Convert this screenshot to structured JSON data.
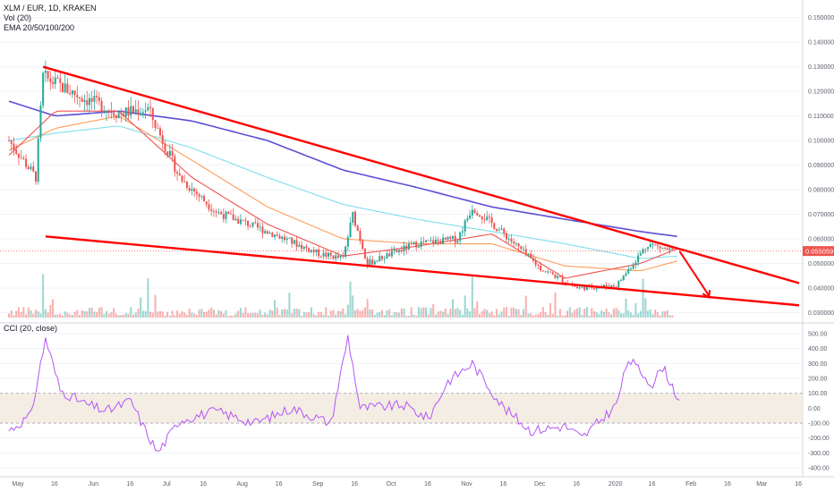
{
  "legend": {
    "symbol": "XLM / EUR, 1D, KRAKEN",
    "volume": "Vol (20)",
    "ema": "EMA 20/50/100/200",
    "cci": "CCI (20, close)"
  },
  "colors": {
    "up": "#26a69a",
    "down": "#ef5350",
    "trendline": "#ff0000",
    "ema20": "#ef5350",
    "ema50": "#ff9c5a",
    "ema100": "#80deea",
    "ema200": "#5c4fd6",
    "cci_line": "#b455f5",
    "cci_band": "#f4ede4"
  },
  "chart_data": [
    {
      "type": "candlestick",
      "title": "XLM / EUR, 1D, KRAKEN",
      "price_axis_ticks": [
        "0.150000",
        "0.140000",
        "0.130000",
        "0.120000",
        "0.110000",
        "0.100000",
        "0.090000",
        "0.080000",
        "0.070000",
        "0.060000",
        "0.050000",
        "0.040000",
        "0.030000"
      ],
      "last_price_label": "0.055059",
      "last_price": 0.055059,
      "ylim": [
        0.028,
        0.155
      ],
      "time_axis_labels": [
        "May",
        "16",
        "Jun",
        "16",
        "Jul",
        "16",
        "Aug",
        "16",
        "Sep",
        "16",
        "Oct",
        "16",
        "Nov",
        "16",
        "Dec",
        "16",
        "2020",
        "16",
        "Feb",
        "16",
        "Mar",
        "16"
      ],
      "x_range_dates": [
        "2019-05-01",
        "2020-03-20"
      ],
      "price_anchor_points": [
        {
          "date": "2019-05-01",
          "close": 0.1
        },
        {
          "date": "2019-05-12",
          "close": 0.085
        },
        {
          "date": "2019-05-15",
          "close": 0.126
        },
        {
          "date": "2019-05-30",
          "close": 0.118
        },
        {
          "date": "2019-06-15",
          "close": 0.111
        },
        {
          "date": "2019-06-27",
          "close": 0.113
        },
        {
          "date": "2019-07-10",
          "close": 0.085
        },
        {
          "date": "2019-07-25",
          "close": 0.071
        },
        {
          "date": "2019-08-15",
          "close": 0.063
        },
        {
          "date": "2019-09-05",
          "close": 0.054
        },
        {
          "date": "2019-09-15",
          "close": 0.052
        },
        {
          "date": "2019-09-19",
          "close": 0.07
        },
        {
          "date": "2019-09-25",
          "close": 0.05
        },
        {
          "date": "2019-10-15",
          "close": 0.058
        },
        {
          "date": "2019-11-01",
          "close": 0.06
        },
        {
          "date": "2019-11-07",
          "close": 0.073
        },
        {
          "date": "2019-11-20",
          "close": 0.062
        },
        {
          "date": "2019-12-05",
          "close": 0.048
        },
        {
          "date": "2019-12-20",
          "close": 0.04
        },
        {
          "date": "2020-01-05",
          "close": 0.041
        },
        {
          "date": "2020-01-18",
          "close": 0.058
        },
        {
          "date": "2020-01-28",
          "close": 0.055
        }
      ],
      "ema_series": [
        {
          "name": "EMA 200",
          "points": [
            [
              "2019-05-01",
              0.116
            ],
            [
              "2019-05-20",
              0.11
            ],
            [
              "2019-06-15",
              0.112
            ],
            [
              "2019-07-15",
              0.108
            ],
            [
              "2019-08-15",
              0.1
            ],
            [
              "2019-09-15",
              0.088
            ],
            [
              "2019-10-15",
              0.081
            ],
            [
              "2019-11-15",
              0.073
            ],
            [
              "2019-12-15",
              0.068
            ],
            [
              "2020-01-15",
              0.063
            ],
            [
              "2020-01-30",
              0.061
            ]
          ]
        },
        {
          "name": "EMA 100",
          "points": [
            [
              "2019-05-01",
              0.1
            ],
            [
              "2019-05-20",
              0.103
            ],
            [
              "2019-06-15",
              0.106
            ],
            [
              "2019-07-15",
              0.097
            ],
            [
              "2019-08-15",
              0.085
            ],
            [
              "2019-09-15",
              0.074
            ],
            [
              "2019-10-15",
              0.068
            ],
            [
              "2019-11-15",
              0.063
            ],
            [
              "2019-12-15",
              0.058
            ],
            [
              "2020-01-15",
              0.052
            ],
            [
              "2020-01-30",
              0.053
            ]
          ]
        },
        {
          "name": "EMA 50",
          "points": [
            [
              "2019-05-01",
              0.096
            ],
            [
              "2019-05-20",
              0.105
            ],
            [
              "2019-06-15",
              0.11
            ],
            [
              "2019-07-15",
              0.092
            ],
            [
              "2019-08-15",
              0.073
            ],
            [
              "2019-09-15",
              0.06
            ],
            [
              "2019-10-15",
              0.058
            ],
            [
              "2019-11-15",
              0.058
            ],
            [
              "2019-12-15",
              0.049
            ],
            [
              "2020-01-15",
              0.047
            ],
            [
              "2020-01-30",
              0.051
            ]
          ]
        },
        {
          "name": "EMA 20",
          "points": [
            [
              "2019-05-01",
              0.094
            ],
            [
              "2019-05-20",
              0.112
            ],
            [
              "2019-06-15",
              0.112
            ],
            [
              "2019-07-15",
              0.085
            ],
            [
              "2019-08-15",
              0.066
            ],
            [
              "2019-09-15",
              0.053
            ],
            [
              "2019-10-15",
              0.057
            ],
            [
              "2019-11-15",
              0.062
            ],
            [
              "2019-12-15",
              0.044
            ],
            [
              "2020-01-15",
              0.05
            ],
            [
              "2020-01-30",
              0.056
            ]
          ]
        }
      ],
      "trendlines": [
        {
          "name": "upper",
          "from": [
            "2019-05-15",
            0.13
          ],
          "to": [
            "2020-03-20",
            0.042
          ]
        },
        {
          "name": "lower",
          "from": [
            "2019-05-16",
            0.061
          ],
          "to": [
            "2020-03-20",
            0.033
          ]
        }
      ],
      "arrow": {
        "from": [
          "2020-01-31",
          0.055
        ],
        "to": [
          "2020-02-12",
          0.037
        ]
      }
    },
    {
      "type": "line",
      "title": "CCI (20, close)",
      "cci_axis_ticks": [
        "500.00",
        "400.00",
        "300.00",
        "200.00",
        "100.00",
        "0.00",
        "-100.00",
        "-200.00",
        "-300.00",
        "-400.00"
      ],
      "ylim": [
        -430,
        530
      ],
      "band": [
        -100,
        100
      ],
      "anchor_points": [
        [
          "2019-05-01",
          -150
        ],
        [
          "2019-05-10",
          -50
        ],
        [
          "2019-05-16",
          470
        ],
        [
          "2019-05-22",
          120
        ],
        [
          "2019-06-01",
          30
        ],
        [
          "2019-06-10",
          -20
        ],
        [
          "2019-06-20",
          50
        ],
        [
          "2019-06-25",
          -120
        ],
        [
          "2019-07-01",
          -300
        ],
        [
          "2019-07-10",
          -80
        ],
        [
          "2019-07-25",
          -20
        ],
        [
          "2019-08-10",
          -100
        ],
        [
          "2019-08-25",
          0
        ],
        [
          "2019-09-10",
          -100
        ],
        [
          "2019-09-17",
          480
        ],
        [
          "2019-09-22",
          0
        ],
        [
          "2019-10-10",
          20
        ],
        [
          "2019-10-20",
          -70
        ],
        [
          "2019-10-28",
          180
        ],
        [
          "2019-11-07",
          300
        ],
        [
          "2019-11-20",
          0
        ],
        [
          "2019-12-01",
          -150
        ],
        [
          "2019-12-15",
          -120
        ],
        [
          "2019-12-22",
          -200
        ],
        [
          "2020-01-05",
          20
        ],
        [
          "2020-01-10",
          330
        ],
        [
          "2020-01-20",
          160
        ],
        [
          "2020-01-24",
          280
        ],
        [
          "2020-01-31",
          50
        ]
      ]
    }
  ]
}
